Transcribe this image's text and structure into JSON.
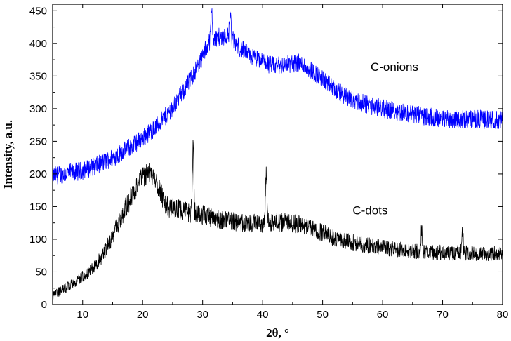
{
  "chart_data": {
    "type": "line",
    "title": "",
    "xlabel": "2θ, °",
    "ylabel": "Intensity, a.u.",
    "xlim": [
      5,
      80
    ],
    "ylim": [
      0,
      460
    ],
    "grid": false,
    "legend": "none",
    "x_ticks": [
      10,
      20,
      30,
      40,
      50,
      60,
      70,
      80
    ],
    "y_ticks": [
      0,
      50,
      100,
      150,
      200,
      250,
      300,
      350,
      400,
      450
    ],
    "annotations": [
      {
        "text": "C-onions",
        "x": 58,
        "y": 358
      },
      {
        "text": "C-dots",
        "x": 55,
        "y": 138
      }
    ],
    "series": [
      {
        "name": "C-onions",
        "color": "#0000ff",
        "noise": 14,
        "x": [
          5,
          8,
          10,
          12,
          14,
          16,
          18,
          20,
          22,
          24,
          26,
          28,
          30,
          31,
          32,
          33,
          34,
          35,
          36,
          38,
          40,
          42,
          44,
          46,
          48,
          50,
          52,
          54,
          56,
          58,
          60,
          62,
          64,
          66,
          68,
          70,
          72,
          74,
          76,
          78,
          80
        ],
        "y": [
          197,
          202,
          205,
          212,
          220,
          230,
          242,
          255,
          270,
          290,
          315,
          345,
          380,
          402,
          408,
          410,
          412,
          406,
          395,
          380,
          372,
          365,
          368,
          370,
          360,
          345,
          330,
          318,
          310,
          305,
          300,
          297,
          293,
          290,
          287,
          285,
          284,
          284,
          284,
          283,
          282
        ]
      },
      {
        "name": "C-dots",
        "color": "#000000",
        "noise": 16,
        "x": [
          5,
          7,
          9,
          11,
          13,
          15,
          17,
          19,
          20,
          21,
          22,
          23,
          24,
          26,
          28,
          30,
          32,
          34,
          36,
          38,
          40,
          42,
          44,
          46,
          48,
          50,
          52,
          54,
          56,
          58,
          60,
          62,
          64,
          66,
          68,
          70,
          72,
          74,
          76,
          78,
          80
        ],
        "y": [
          12,
          25,
          35,
          50,
          70,
          105,
          145,
          180,
          195,
          202,
          195,
          172,
          150,
          145,
          140,
          137,
          132,
          128,
          126,
          124,
          125,
          126,
          126,
          123,
          118,
          110,
          102,
          97,
          93,
          90,
          87,
          85,
          83,
          81,
          80,
          80,
          79,
          79,
          78,
          78,
          77
        ]
      }
    ],
    "peaks": [
      {
        "series": "C-dots",
        "x": 28.4,
        "y": 248
      },
      {
        "series": "C-dots",
        "x": 40.6,
        "y": 213
      },
      {
        "series": "C-dots",
        "x": 66.5,
        "y": 118
      },
      {
        "series": "C-dots",
        "x": 73.3,
        "y": 120
      },
      {
        "series": "C-onions",
        "x": 31.5,
        "y": 455
      },
      {
        "series": "C-onions",
        "x": 34.6,
        "y": 450
      }
    ]
  }
}
